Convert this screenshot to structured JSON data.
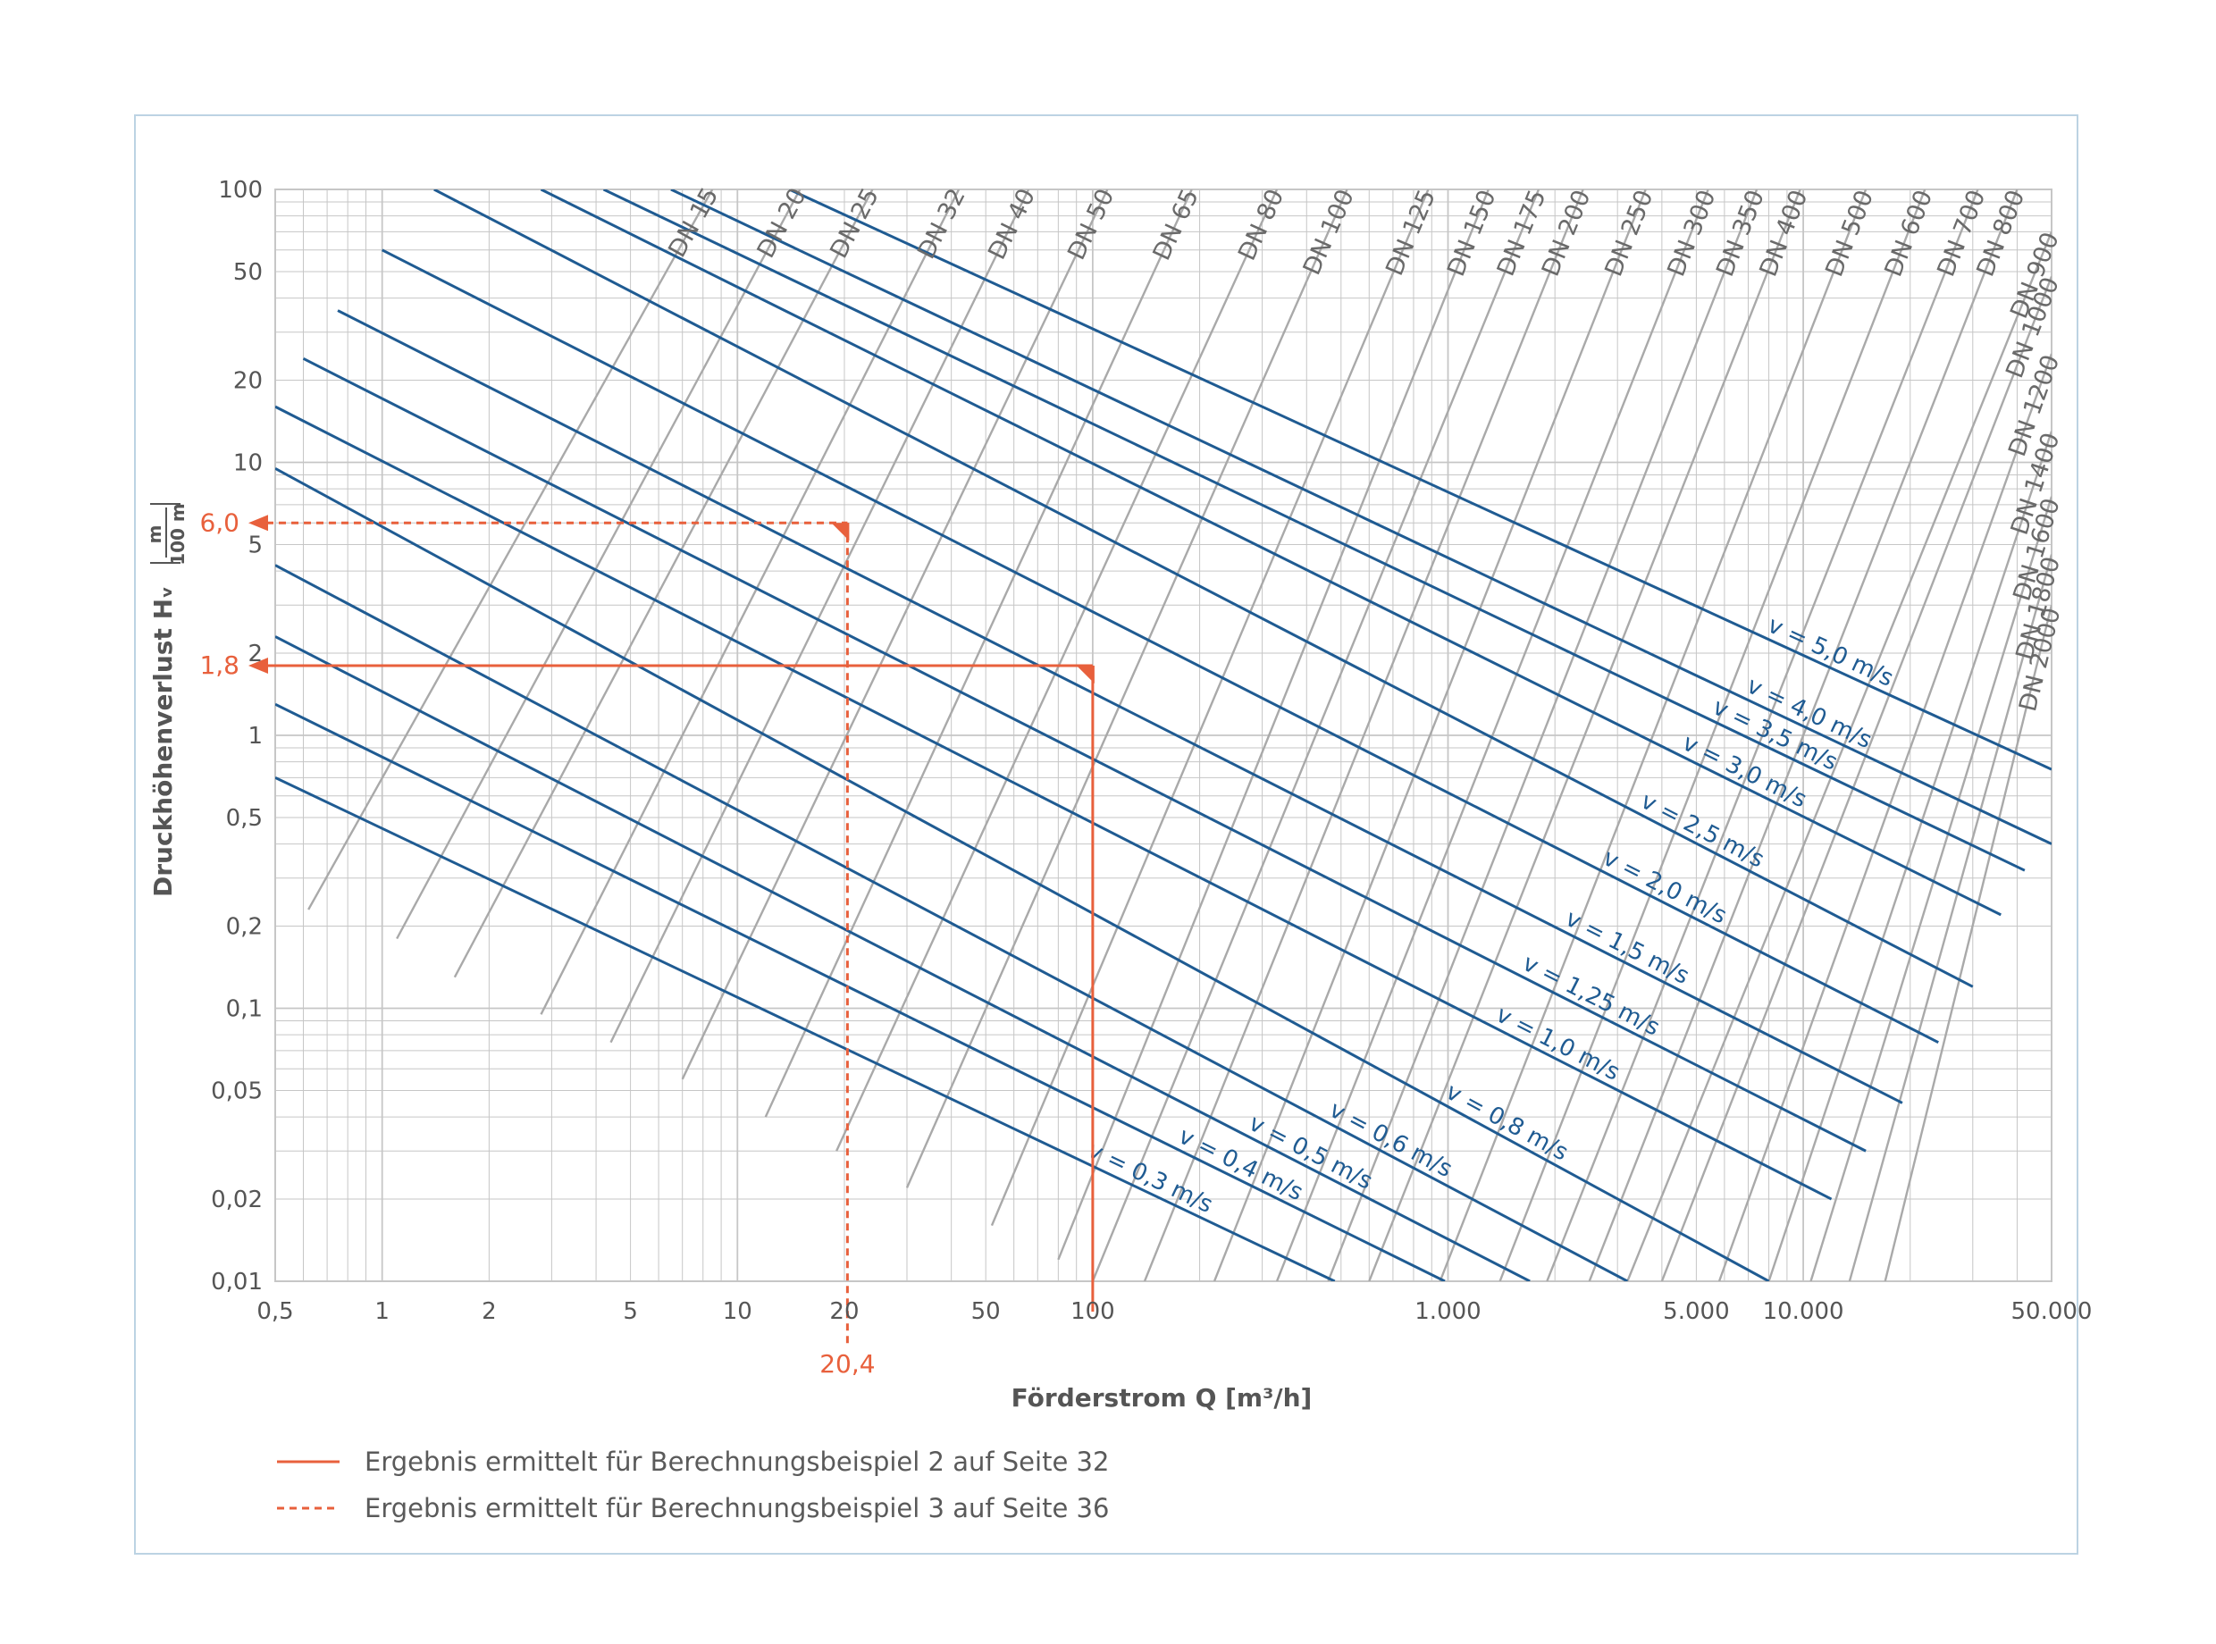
{
  "chart_data": {
    "type": "line",
    "xlabel": "Förderstrom Q [m³/h]",
    "ylabel": "Druckhöhenverlust Hᵥ",
    "ylabel_unit_num": "m",
    "ylabel_unit_den": "100 m",
    "x_scale": "log",
    "y_scale": "log",
    "xlim": [
      0.5,
      50000
    ],
    "ylim": [
      0.01,
      100
    ],
    "grid": true,
    "x_ticks": [
      {
        "v": 0.5,
        "label": "0,5"
      },
      {
        "v": 1,
        "label": "1"
      },
      {
        "v": 2,
        "label": "2"
      },
      {
        "v": 5,
        "label": "5"
      },
      {
        "v": 10,
        "label": "10"
      },
      {
        "v": 20,
        "label": "20"
      },
      {
        "v": 50,
        "label": "50"
      },
      {
        "v": 100,
        "label": "100"
      },
      {
        "v": 1000,
        "label": "1.000"
      },
      {
        "v": 5000,
        "label": "5.000"
      },
      {
        "v": 10000,
        "label": "10.000"
      },
      {
        "v": 50000,
        "label": "50.000"
      }
    ],
    "y_ticks": [
      {
        "v": 0.01,
        "label": "0,01"
      },
      {
        "v": 0.02,
        "label": "0,02"
      },
      {
        "v": 0.05,
        "label": "0,05"
      },
      {
        "v": 0.1,
        "label": "0,1"
      },
      {
        "v": 0.2,
        "label": "0,2"
      },
      {
        "v": 0.5,
        "label": "0,5"
      },
      {
        "v": 1,
        "label": "1"
      },
      {
        "v": 2,
        "label": "2"
      },
      {
        "v": 5,
        "label": "5"
      },
      {
        "v": 10,
        "label": "10"
      },
      {
        "v": 20,
        "label": "20"
      },
      {
        "v": 50,
        "label": "50"
      },
      {
        "v": 100,
        "label": "100"
      }
    ],
    "diameter_series": [
      {
        "name": "DN 15",
        "x": [
          0.62,
          8.5
        ],
        "y": [
          0.23,
          100
        ],
        "highlight": false
      },
      {
        "name": "DN 20",
        "x": [
          1.1,
          15
        ],
        "y": [
          0.18,
          100
        ],
        "highlight": false
      },
      {
        "name": "DN 25",
        "x": [
          1.6,
          24
        ],
        "y": [
          0.13,
          100
        ],
        "highlight": false
      },
      {
        "name": "DN 32",
        "x": [
          2.8,
          42
        ],
        "y": [
          0.095,
          100
        ],
        "highlight": false
      },
      {
        "name": "DN 40",
        "x": [
          4.4,
          66
        ],
        "y": [
          0.075,
          100
        ],
        "highlight": false
      },
      {
        "name": "DN 50",
        "x": [
          7,
          110
        ],
        "y": [
          0.055,
          100
        ],
        "highlight": false
      },
      {
        "name": "DN 65",
        "x": [
          12,
          190
        ],
        "y": [
          0.04,
          100
        ],
        "highlight": true
      },
      {
        "name": "DN 80",
        "x": [
          19,
          330
        ],
        "y": [
          0.03,
          100
        ],
        "highlight": false
      },
      {
        "name": "DN 100",
        "x": [
          30,
          520
        ],
        "y": [
          0.022,
          100
        ],
        "highlight": false
      },
      {
        "name": "DN 125",
        "x": [
          52,
          880
        ],
        "y": [
          0.016,
          100
        ],
        "highlight": false
      },
      {
        "name": "DN 150",
        "x": [
          80,
          1300
        ],
        "y": [
          0.012,
          100
        ],
        "highlight": true
      },
      {
        "name": "DN 175",
        "x": [
          100,
          1800
        ],
        "y": [
          0.01,
          100
        ],
        "highlight": false
      },
      {
        "name": "DN 200",
        "x": [
          140,
          2400
        ],
        "y": [
          0.01,
          100
        ],
        "highlight": false
      },
      {
        "name": "DN 250",
        "x": [
          220,
          3600
        ],
        "y": [
          0.01,
          100
        ],
        "highlight": false
      },
      {
        "name": "DN 300",
        "x": [
          330,
          5400
        ],
        "y": [
          0.01,
          100
        ],
        "highlight": false
      },
      {
        "name": "DN 350",
        "x": [
          460,
          7400
        ],
        "y": [
          0.01,
          100
        ],
        "highlight": false
      },
      {
        "name": "DN 400",
        "x": [
          600,
          9800
        ],
        "y": [
          0.01,
          100
        ],
        "highlight": false
      },
      {
        "name": "DN 500",
        "x": [
          950,
          15000
        ],
        "y": [
          0.01,
          100
        ],
        "highlight": false
      },
      {
        "name": "DN 600",
        "x": [
          1400,
          22000
        ],
        "y": [
          0.01,
          100
        ],
        "highlight": false
      },
      {
        "name": "DN 700",
        "x": [
          1900,
          31000
        ],
        "y": [
          0.01,
          100
        ],
        "highlight": false
      },
      {
        "name": "DN 800",
        "x": [
          2500,
          40000
        ],
        "y": [
          0.01,
          100
        ],
        "highlight": false
      },
      {
        "name": "DN 900",
        "x": [
          3200,
          50000
        ],
        "y": [
          0.01,
          70
        ],
        "highlight": false
      },
      {
        "name": "DN 1000",
        "x": [
          4000,
          50000
        ],
        "y": [
          0.01,
          48
        ],
        "highlight": false
      },
      {
        "name": "DN 1200",
        "x": [
          5800,
          50000
        ],
        "y": [
          0.01,
          25
        ],
        "highlight": false
      },
      {
        "name": "DN 1400",
        "x": [
          8000,
          50000
        ],
        "y": [
          0.01,
          13
        ],
        "highlight": false
      },
      {
        "name": "DN 1600",
        "x": [
          10500,
          50000
        ],
        "y": [
          0.01,
          7.5
        ],
        "highlight": false
      },
      {
        "name": "DN 1800",
        "x": [
          13500,
          50000
        ],
        "y": [
          0.01,
          4.6
        ],
        "highlight": false
      },
      {
        "name": "DN 2000",
        "x": [
          17000,
          50000
        ],
        "y": [
          0.01,
          3
        ],
        "highlight": false
      }
    ],
    "velocity_series": [
      {
        "name": "v = 0,3 m/s",
        "x": [
          0.5,
          480
        ],
        "y": [
          0.7,
          0.01
        ]
      },
      {
        "name": "v = 0,4 m/s",
        "x": [
          0.5,
          980
        ],
        "y": [
          1.3,
          0.01
        ]
      },
      {
        "name": "v = 0,5 m/s",
        "x": [
          0.5,
          1700
        ],
        "y": [
          2.3,
          0.01
        ]
      },
      {
        "name": "v = 0,6 m/s",
        "x": [
          0.5,
          3200
        ],
        "y": [
          4.2,
          0.01
        ]
      },
      {
        "name": "v = 0,8 m/s",
        "x": [
          0.5,
          8000
        ],
        "y": [
          9.5,
          0.01
        ]
      },
      {
        "name": "v = 1,0 m/s",
        "x": [
          0.5,
          12000
        ],
        "y": [
          16,
          0.02
        ]
      },
      {
        "name": "v = 1,25 m/s",
        "x": [
          0.6,
          15000
        ],
        "y": [
          24,
          0.03
        ]
      },
      {
        "name": "v = 1,5 m/s",
        "x": [
          0.75,
          19000
        ],
        "y": [
          36,
          0.045
        ]
      },
      {
        "name": "v = 2,0 m/s",
        "x": [
          1,
          24000
        ],
        "y": [
          60,
          0.075
        ]
      },
      {
        "name": "v = 2,5 m/s",
        "x": [
          1.4,
          30000
        ],
        "y": [
          100,
          0.12
        ]
      },
      {
        "name": "v = 3,0 m/s",
        "x": [
          2.8,
          36000
        ],
        "y": [
          100,
          0.22
        ]
      },
      {
        "name": "v = 3,5 m/s",
        "x": [
          4.2,
          42000
        ],
        "y": [
          100,
          0.32
        ]
      },
      {
        "name": "v = 4,0 m/s",
        "x": [
          6.5,
          50000
        ],
        "y": [
          100,
          0.4
        ]
      },
      {
        "name": "v = 5,0 m/s",
        "x": [
          14,
          50000
        ],
        "y": [
          100,
          0.75
        ]
      }
    ],
    "result_lines": [
      {
        "style": "solid",
        "q": 100,
        "h": 1.8,
        "q_label": "100",
        "h_label": "1,8"
      },
      {
        "style": "dashed",
        "q": 20.4,
        "h": 6.0,
        "q_label": "20,4",
        "h_label": "6,0"
      }
    ],
    "legend": {
      "placement": "bottom-left",
      "entries": [
        {
          "style": "solid",
          "label": "Ergebnis ermittelt für Berechnungsbeispiel 2 auf Seite 32"
        },
        {
          "style": "dashed",
          "label": "Ergebnis ermittelt für Berechnungsbeispiel 3 auf Seite 36"
        }
      ]
    },
    "colors": {
      "grid": "#c6c6c6",
      "diameter_line": "#a9a9a9",
      "velocity_line": "#1f5b92",
      "highlight": "#e8603c",
      "frame": "#bcd3e3",
      "text": "#555555"
    }
  }
}
